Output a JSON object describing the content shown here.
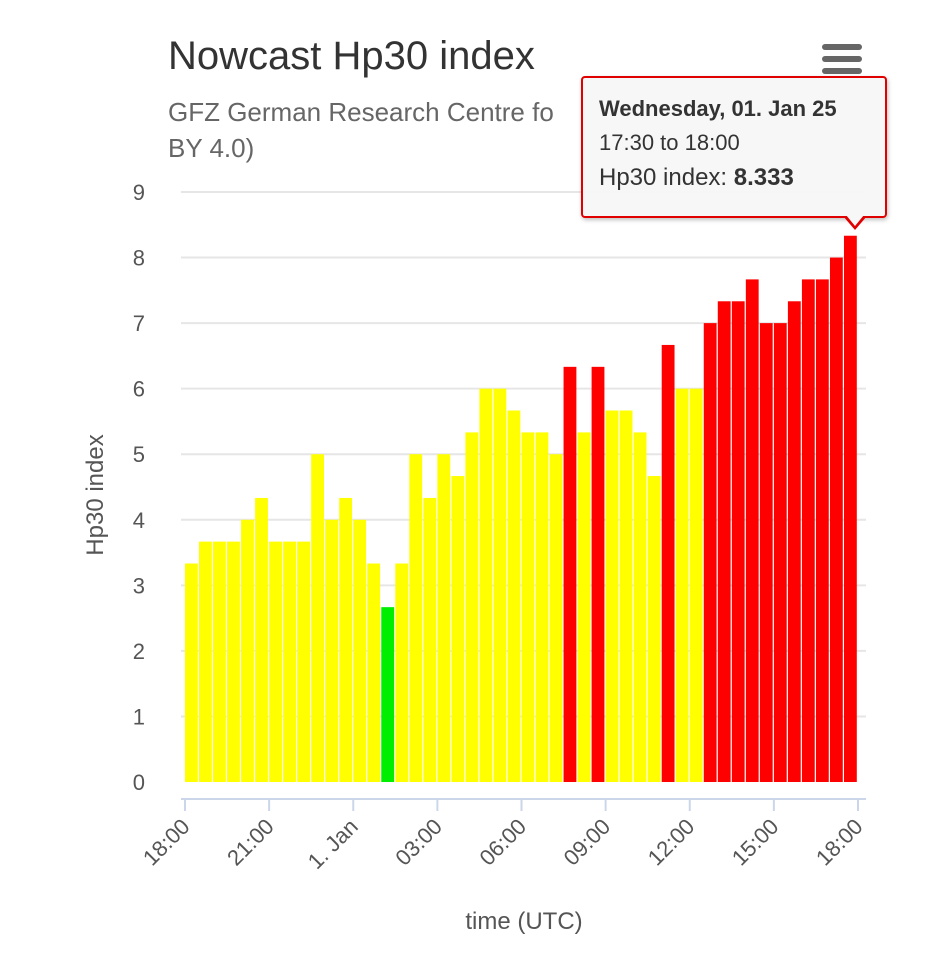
{
  "title": "Nowcast Hp30 index",
  "subtitle": "GFZ German Research Centre fo",
  "subtitle_line2": "BY 4.0)",
  "menu_icon": "hamburger-menu-icon",
  "tooltip": {
    "date": "Wednesday, 01. Jan 25",
    "range": "17:30 to 18:00",
    "label": "Hp30 index: ",
    "value": "8.333",
    "border_color": "#e00000"
  },
  "chart_data": {
    "type": "bar",
    "xlabel": "time (UTC)",
    "ylabel": "Hp30 index",
    "ylim": [
      0,
      9
    ],
    "yticks": [
      "0",
      "1",
      "2",
      "3",
      "4",
      "5",
      "6",
      "7",
      "8",
      "9"
    ],
    "xlim": [
      "18:00",
      "18:00"
    ],
    "xticks": [
      "18:00",
      "21:00",
      "1. Jan",
      "03:00",
      "06:00",
      "09:00",
      "12:00",
      "15:00",
      "18:00"
    ],
    "grid": true,
    "bar_interval": "30 min",
    "colors": {
      "yellow": "#ffff00",
      "green": "#00ee00",
      "red": "#ff0000"
    },
    "values": [
      3.333,
      3.667,
      3.667,
      3.667,
      4.0,
      4.333,
      3.667,
      3.667,
      3.667,
      5.0,
      4.0,
      4.333,
      4.0,
      3.333,
      2.667,
      3.333,
      5.0,
      4.333,
      5.0,
      4.667,
      5.333,
      6.0,
      6.0,
      5.667,
      5.333,
      5.333,
      5.0,
      6.333,
      5.333,
      6.333,
      5.667,
      5.667,
      5.333,
      4.667,
      6.667,
      6.0,
      6.0,
      7.0,
      7.333,
      7.333,
      7.667,
      7.0,
      7.0,
      7.333,
      7.667,
      7.667,
      8.0,
      8.333
    ],
    "bar_colors": [
      "yellow",
      "yellow",
      "yellow",
      "yellow",
      "yellow",
      "yellow",
      "yellow",
      "yellow",
      "yellow",
      "yellow",
      "yellow",
      "yellow",
      "yellow",
      "yellow",
      "green",
      "yellow",
      "yellow",
      "yellow",
      "yellow",
      "yellow",
      "yellow",
      "yellow",
      "yellow",
      "yellow",
      "yellow",
      "yellow",
      "yellow",
      "red",
      "yellow",
      "red",
      "yellow",
      "yellow",
      "yellow",
      "yellow",
      "red",
      "yellow",
      "yellow",
      "red",
      "red",
      "red",
      "red",
      "red",
      "red",
      "red",
      "red",
      "red",
      "red",
      "red"
    ]
  }
}
